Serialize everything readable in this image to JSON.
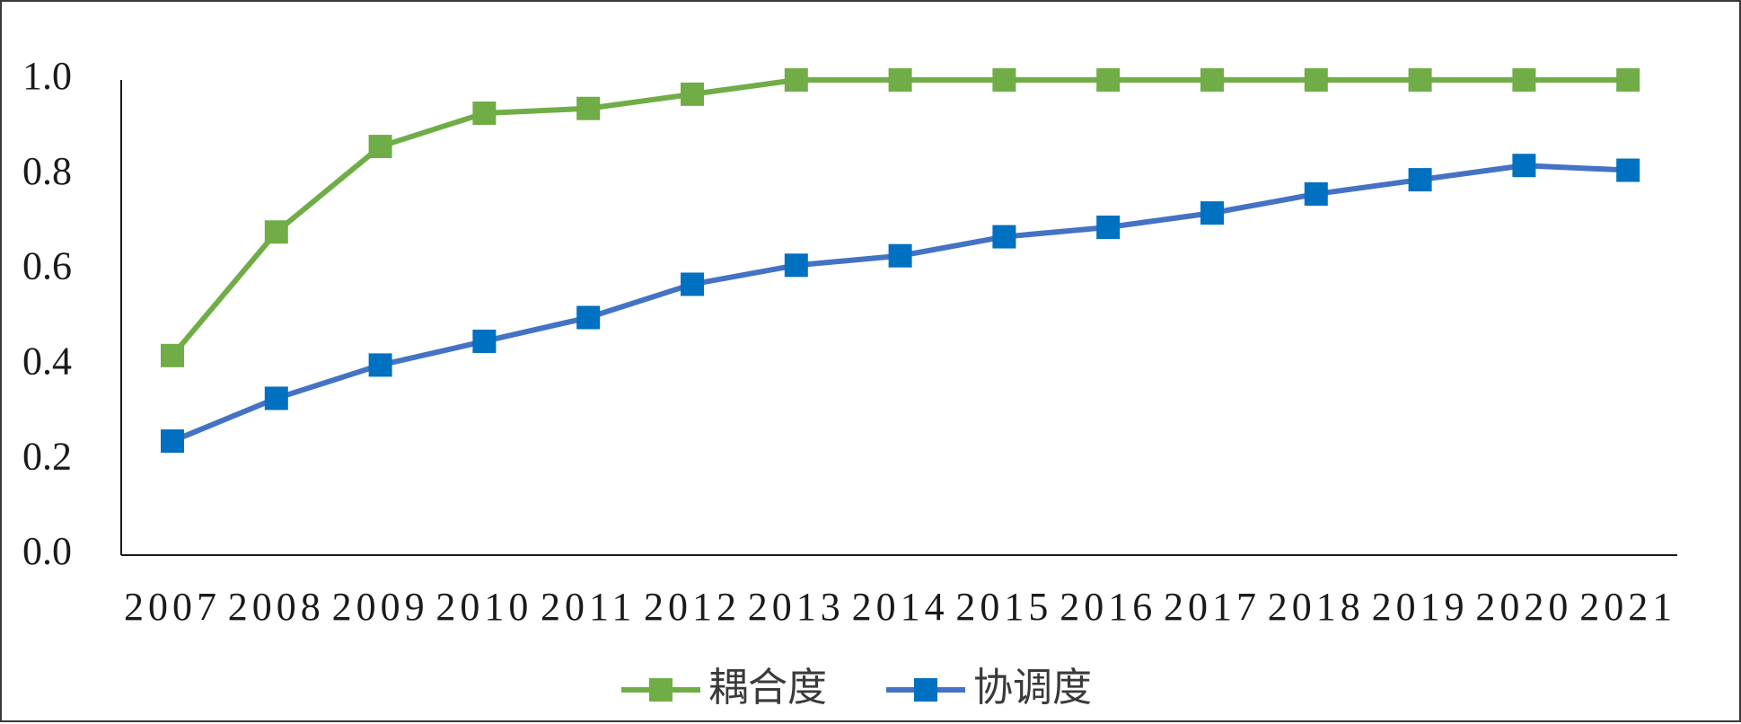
{
  "chart_data": {
    "type": "line",
    "categories": [
      "2007",
      "2008",
      "2009",
      "2010",
      "2011",
      "2012",
      "2013",
      "2014",
      "2015",
      "2016",
      "2017",
      "2018",
      "2019",
      "2020",
      "2021"
    ],
    "series": [
      {
        "name": "耦合度",
        "color": "#70ad47",
        "marker": "square",
        "values": [
          0.42,
          0.68,
          0.86,
          0.93,
          0.94,
          0.97,
          1.0,
          1.0,
          1.0,
          1.0,
          1.0,
          1.0,
          1.0,
          1.0,
          1.0
        ]
      },
      {
        "name": "协调度",
        "color": "#4472c4",
        "marker_color": "#0070c0",
        "marker": "square",
        "values": [
          0.24,
          0.33,
          0.4,
          0.45,
          0.5,
          0.57,
          0.61,
          0.63,
          0.67,
          0.69,
          0.72,
          0.76,
          0.79,
          0.82,
          0.81
        ]
      }
    ],
    "yticks": [
      "0.0",
      "0.2",
      "0.4",
      "0.6",
      "0.8",
      "1.0"
    ],
    "ylim": [
      0,
      1.0
    ],
    "grid": false,
    "legend_position": "bottom",
    "title": "",
    "xlabel": "",
    "ylabel": ""
  }
}
